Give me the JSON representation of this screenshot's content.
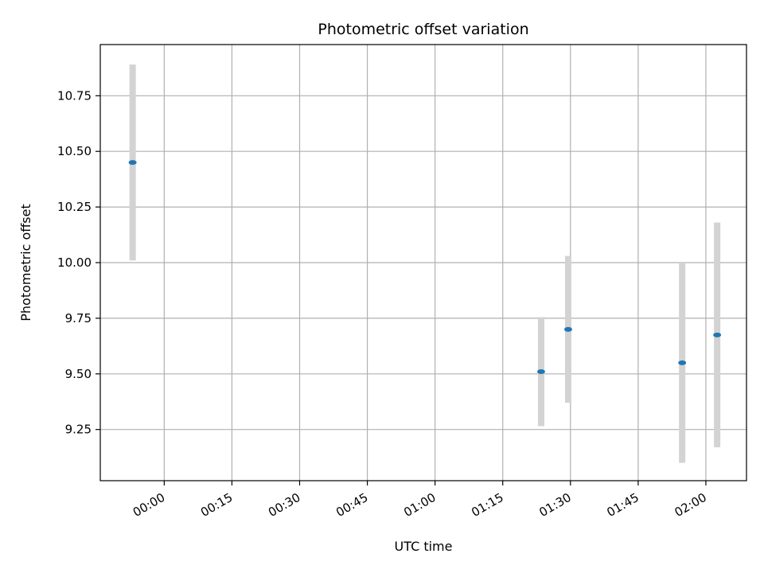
{
  "chart_data": {
    "type": "scatter",
    "title": "Photometric offset variation",
    "xlabel": "UTC time",
    "ylabel": "Photometric offset",
    "x_ticks": [
      "00:00",
      "00:15",
      "00:30",
      "00:45",
      "01:00",
      "01:15",
      "01:30",
      "01:45",
      "02:00"
    ],
    "y_ticks": [
      "9.25",
      "9.50",
      "9.75",
      "10.00",
      "10.25",
      "10.50",
      "10.75"
    ],
    "xlim": [
      "23:45:50",
      "02:09:00"
    ],
    "ylim": [
      9.02,
      10.98
    ],
    "grid": true,
    "series": [
      {
        "points": [
          {
            "time": "23:53:00",
            "y": 10.45,
            "err": 0.44
          },
          {
            "time": "01:23:30",
            "y": 9.51,
            "err": 0.245
          },
          {
            "time": "01:29:30",
            "y": 9.7,
            "err": 0.33
          },
          {
            "time": "01:54:45",
            "y": 9.55,
            "err": 0.45
          },
          {
            "time": "02:02:30",
            "y": 9.675,
            "err": 0.505
          }
        ]
      }
    ],
    "colors": {
      "point": "#1f77b4",
      "errorbar": "#d3d3d3",
      "grid": "#b0b0b0"
    }
  }
}
